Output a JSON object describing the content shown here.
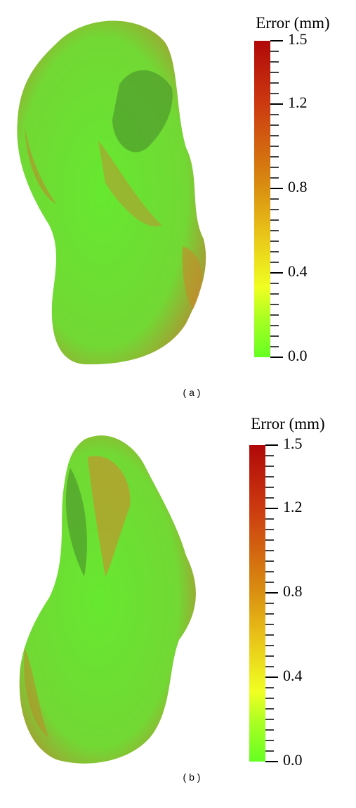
{
  "panels": [
    {
      "label": "( a )",
      "colorbar": {
        "title": "Error (mm)",
        "range": [
          0,
          1.5
        ],
        "ticks": [
          {
            "value": 0,
            "label": "0.0"
          },
          0.4,
          0.8,
          1.2,
          1.5
        ]
      }
    },
    {
      "label": "( b )",
      "colorbar": {
        "title": "Error (mm)",
        "range": [
          0,
          1.5
        ],
        "ticks": [
          {
            "value": 0,
            "label": "0.0"
          },
          0.4,
          0.8,
          1.2,
          1.5
        ]
      }
    }
  ]
}
